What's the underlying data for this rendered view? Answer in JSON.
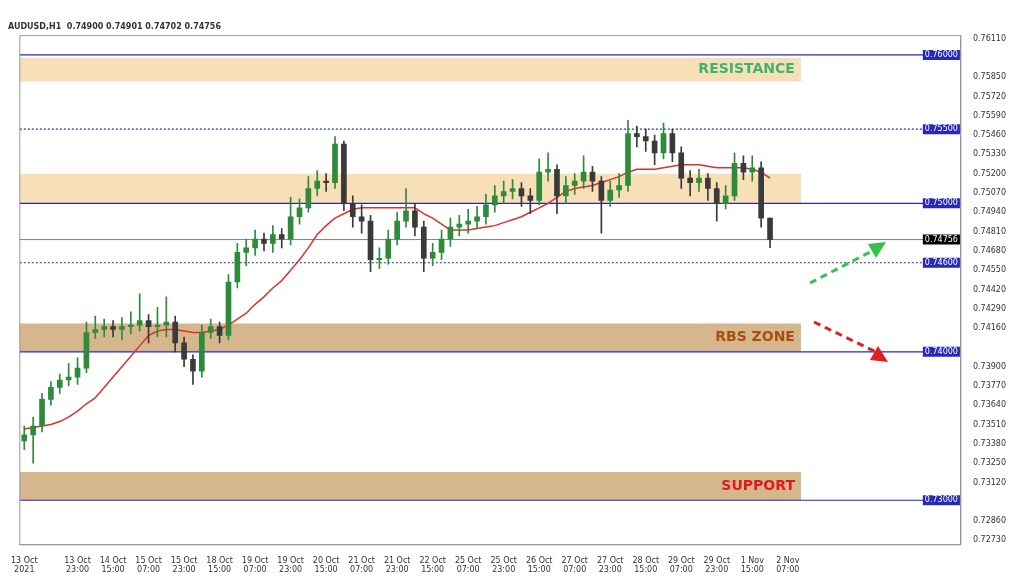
{
  "chart_data": {
    "type": "candlestick",
    "title": "AUDUSD,H1  0.74900 0.74901 0.74702 0.74756",
    "categories": [
      "13 Oct 2021",
      null,
      null,
      null,
      null,
      null,
      "13 Oct 23:00",
      null,
      null,
      null,
      "14 Oct 15:00",
      null,
      null,
      null,
      "15 Oct 07:00",
      null,
      null,
      null,
      "15 Oct 23:00",
      null,
      null,
      null,
      "18 Oct 15:00",
      null,
      null,
      null,
      "19 Oct 07:00",
      null,
      null,
      null,
      "19 Oct 23:00",
      null,
      null,
      null,
      "20 Oct 15:00",
      null,
      null,
      null,
      "21 Oct 07:00",
      null,
      null,
      null,
      "21 Oct 23:00",
      null,
      null,
      null,
      "22 Oct 15:00",
      null,
      null,
      null,
      "25 Oct 07:00",
      null,
      null,
      null,
      "25 Oct 23:00",
      null,
      null,
      null,
      "26 Oct 15:00",
      null,
      null,
      null,
      "27 Oct 07:00",
      null,
      null,
      null,
      "27 Oct 23:00",
      null,
      null,
      null,
      "28 Oct 15:00",
      null,
      null,
      null,
      "29 Oct 07:00",
      null,
      null,
      null,
      "29 Oct 23:00",
      null,
      null,
      null,
      "1 Nov 15:00",
      null,
      null,
      null,
      "2 Nov 07:00",
      null,
      null,
      null,
      null,
      null,
      null,
      null,
      null,
      null,
      null,
      null,
      null,
      null,
      null,
      null,
      null,
      null,
      null,
      null
    ],
    "ohlc": [
      [
        0.734,
        0.735,
        0.7334,
        0.7344
      ],
      [
        0.7344,
        0.7356,
        0.7325,
        0.735
      ],
      [
        0.735,
        0.7372,
        0.7346,
        0.7368
      ],
      [
        0.7368,
        0.738,
        0.7364,
        0.7376
      ],
      [
        0.7376,
        0.7385,
        0.7372,
        0.7381
      ],
      [
        0.7381,
        0.7392,
        0.7377,
        0.7383
      ],
      [
        0.7383,
        0.7396,
        0.7378,
        0.7389
      ],
      [
        0.7389,
        0.742,
        0.7386,
        0.7413
      ],
      [
        0.7413,
        0.7424,
        0.7409,
        0.7415
      ],
      [
        0.7415,
        0.7422,
        0.741,
        0.7417
      ],
      [
        0.7417,
        0.7421,
        0.741,
        0.7415
      ],
      [
        0.7415,
        0.7423,
        0.7408,
        0.7417
      ],
      [
        0.7417,
        0.7427,
        0.7412,
        0.7418
      ],
      [
        0.7418,
        0.7439,
        0.7414,
        0.7421
      ],
      [
        0.7421,
        0.7425,
        0.7406,
        0.7417
      ],
      [
        0.7417,
        0.743,
        0.741,
        0.7418
      ],
      [
        0.7418,
        0.7437,
        0.741,
        0.742
      ],
      [
        0.742,
        0.7424,
        0.74,
        0.7406
      ],
      [
        0.7406,
        0.741,
        0.739,
        0.7395
      ],
      [
        0.7395,
        0.7398,
        0.7378,
        0.7387
      ],
      [
        0.7387,
        0.7418,
        0.7383,
        0.7413
      ],
      [
        0.7413,
        0.7422,
        0.7409,
        0.7417
      ],
      [
        0.7417,
        0.742,
        0.7406,
        0.7411
      ],
      [
        0.7411,
        0.7452,
        0.7408,
        0.7447
      ],
      [
        0.7447,
        0.7473,
        0.7443,
        0.7467
      ],
      [
        0.7467,
        0.7476,
        0.7458,
        0.747
      ],
      [
        0.747,
        0.7482,
        0.7465,
        0.7476
      ],
      [
        0.7476,
        0.748,
        0.7468,
        0.7473
      ],
      [
        0.7473,
        0.7485,
        0.7467,
        0.7479
      ],
      [
        0.7479,
        0.7483,
        0.747,
        0.7476
      ],
      [
        0.7476,
        0.7504,
        0.7472,
        0.7491
      ],
      [
        0.7491,
        0.7503,
        0.7486,
        0.7497
      ],
      [
        0.7497,
        0.7518,
        0.7494,
        0.751
      ],
      [
        0.751,
        0.7522,
        0.7505,
        0.7515
      ],
      [
        0.7515,
        0.752,
        0.7508,
        0.7514
      ],
      [
        0.7514,
        0.7545,
        0.751,
        0.754
      ],
      [
        0.754,
        0.7542,
        0.7495,
        0.75
      ],
      [
        0.75,
        0.7505,
        0.7484,
        0.7491
      ],
      [
        0.7491,
        0.7499,
        0.748,
        0.7488
      ],
      [
        0.7488,
        0.7492,
        0.7454,
        0.7462
      ],
      [
        0.7462,
        0.747,
        0.7456,
        0.7463
      ],
      [
        0.7463,
        0.7482,
        0.7459,
        0.7476
      ],
      [
        0.7476,
        0.7494,
        0.7472,
        0.7488
      ],
      [
        0.7488,
        0.751,
        0.7484,
        0.7495
      ],
      [
        0.7495,
        0.75,
        0.7478,
        0.7484
      ],
      [
        0.7484,
        0.7488,
        0.7454,
        0.7463
      ],
      [
        0.7463,
        0.7473,
        0.7458,
        0.7467
      ],
      [
        0.7467,
        0.7482,
        0.7462,
        0.7476
      ],
      [
        0.7476,
        0.749,
        0.7471,
        0.7484
      ],
      [
        0.7484,
        0.7492,
        0.7478,
        0.7486
      ],
      [
        0.7486,
        0.7496,
        0.748,
        0.7488
      ],
      [
        0.7488,
        0.7498,
        0.7483,
        0.7491
      ],
      [
        0.7491,
        0.7506,
        0.7486,
        0.7499
      ],
      [
        0.7499,
        0.7512,
        0.7494,
        0.7505
      ],
      [
        0.7505,
        0.7515,
        0.75,
        0.7508
      ],
      [
        0.7508,
        0.7516,
        0.7503,
        0.751
      ],
      [
        0.751,
        0.7514,
        0.7498,
        0.7505
      ],
      [
        0.7505,
        0.751,
        0.7493,
        0.7502
      ],
      [
        0.7502,
        0.753,
        0.7499,
        0.7521
      ],
      [
        0.7521,
        0.7534,
        0.7515,
        0.7523
      ],
      [
        0.7523,
        0.7526,
        0.7493,
        0.7505
      ],
      [
        0.7505,
        0.7518,
        0.75,
        0.7512
      ],
      [
        0.7512,
        0.752,
        0.7506,
        0.7515
      ],
      [
        0.7515,
        0.7532,
        0.751,
        0.7521
      ],
      [
        0.7521,
        0.7525,
        0.7508,
        0.7515
      ],
      [
        0.7515,
        0.7518,
        0.748,
        0.7502
      ],
      [
        0.7502,
        0.7515,
        0.7498,
        0.7509
      ],
      [
        0.7509,
        0.752,
        0.7504,
        0.7512
      ],
      [
        0.7512,
        0.7556,
        0.7508,
        0.7547
      ],
      [
        0.7547,
        0.7552,
        0.7538,
        0.7545
      ],
      [
        0.7545,
        0.755,
        0.7535,
        0.7542
      ],
      [
        0.7542,
        0.7546,
        0.7526,
        0.7534
      ],
      [
        0.7534,
        0.7554,
        0.753,
        0.7547
      ],
      [
        0.7547,
        0.755,
        0.7528,
        0.7534
      ],
      [
        0.7534,
        0.7538,
        0.751,
        0.7517
      ],
      [
        0.7517,
        0.7522,
        0.7505,
        0.7514
      ],
      [
        0.7514,
        0.7523,
        0.7508,
        0.7517
      ],
      [
        0.7517,
        0.752,
        0.7502,
        0.751
      ],
      [
        0.751,
        0.7514,
        0.7488,
        0.75
      ],
      [
        0.75,
        0.7512,
        0.7496,
        0.7505
      ],
      [
        0.7505,
        0.7534,
        0.7502,
        0.7527
      ],
      [
        0.7527,
        0.7532,
        0.7516,
        0.7521
      ],
      [
        0.7521,
        0.7532,
        0.7515,
        0.7524
      ],
      [
        0.7524,
        0.7528,
        0.7484,
        0.749
      ],
      [
        0.749,
        0.74901,
        0.74702,
        0.74756
      ],
      null,
      null,
      null,
      null,
      null,
      null,
      null,
      null,
      null,
      null,
      null,
      null,
      null,
      null,
      null,
      null,
      null,
      null,
      null,
      null,
      null
    ],
    "series": [
      {
        "type": "line",
        "color": "#e0302c",
        "values": [
          0.7348,
          0.7349,
          0.735,
          0.7351,
          0.7353,
          0.7356,
          0.736,
          0.7365,
          0.7369,
          0.7376,
          0.7383,
          0.739,
          0.7397,
          0.7404,
          0.7411,
          0.7414,
          0.7415,
          0.7415,
          0.7414,
          0.7413,
          0.7413,
          0.7414,
          0.7415,
          0.7418,
          0.7422,
          0.7426,
          0.7432,
          0.7437,
          0.7443,
          0.7448,
          0.7455,
          0.7462,
          0.747,
          0.7479,
          0.7485,
          0.749,
          0.7493,
          0.7496,
          0.7497,
          0.7497,
          0.7497,
          0.7497,
          0.7497,
          0.7497,
          0.7497,
          0.7493,
          0.749,
          0.7486,
          0.7482,
          0.7482,
          0.7482,
          0.7483,
          0.7484,
          0.7485,
          0.7487,
          0.7489,
          0.7491,
          0.7494,
          0.7497,
          0.75,
          0.7504,
          0.7508,
          0.751,
          0.7511,
          0.7512,
          0.7514,
          0.7516,
          0.7518,
          0.7521,
          0.7523,
          0.7523,
          0.7523,
          0.7524,
          0.7525,
          0.7526,
          0.7526,
          0.7526,
          0.7525,
          0.7524,
          0.7524,
          0.7524,
          0.7524,
          0.7523,
          0.7521,
          0.7517,
          null,
          null,
          null,
          null,
          null,
          null,
          null,
          null,
          null,
          null,
          null,
          null,
          null,
          null,
          null,
          null,
          null,
          null,
          null,
          null,
          null
        ]
      }
    ],
    "ylim": [
      0.727,
      0.7613
    ],
    "yticks": [
      {
        "value": 0.7611,
        "label": "0.76110"
      },
      {
        "value": 0.7585,
        "label": "0.75850"
      },
      {
        "value": 0.7572,
        "label": "0.75720"
      },
      {
        "value": 0.7559,
        "label": "0.75590"
      },
      {
        "value": 0.7546,
        "label": "0.75460"
      },
      {
        "value": 0.7533,
        "label": "0.75330"
      },
      {
        "value": 0.752,
        "label": "0.75200"
      },
      {
        "value": 0.7507,
        "label": "0.75070"
      },
      {
        "value": 0.7494,
        "label": "0.74940"
      },
      {
        "value": 0.7481,
        "label": "0.74810"
      },
      {
        "value": 0.7468,
        "label": "0.74680"
      },
      {
        "value": 0.7455,
        "label": "0.74550"
      },
      {
        "value": 0.7442,
        "label": "0.74420"
      },
      {
        "value": 0.7429,
        "label": "0.74290"
      },
      {
        "value": 0.7416,
        "label": "0.74160"
      },
      {
        "value": 0.739,
        "label": "0.73900"
      },
      {
        "value": 0.7377,
        "label": "0.73770"
      },
      {
        "value": 0.7364,
        "label": "0.73640"
      },
      {
        "value": 0.7351,
        "label": "0.73510"
      },
      {
        "value": 0.7338,
        "label": "0.73380"
      },
      {
        "value": 0.7325,
        "label": "0.73250"
      },
      {
        "value": 0.7312,
        "label": "0.73120"
      },
      {
        "value": 0.7286,
        "label": "0.72860"
      },
      {
        "value": 0.7273,
        "label": "0.72730"
      }
    ],
    "bands": [
      {
        "axis": "y",
        "from": 0.7582,
        "to": 0.7598,
        "label": "RESISTANCE",
        "color": "#f7dfb8"
      },
      {
        "axis": "y",
        "from": 0.75,
        "to": 0.752,
        "label": null,
        "color": "#f7dfb8"
      },
      {
        "axis": "y",
        "from": 0.74,
        "to": 0.7419,
        "label": "RBS ZONE",
        "color": "#d6b68c"
      },
      {
        "axis": "y",
        "from": 0.73,
        "to": 0.7319,
        "label": "SUPPORT",
        "color": "#d6b68c"
      }
    ],
    "ref_lines": [
      {
        "axis": "y",
        "value": 0.76,
        "label": "0.76000",
        "color": "#2828b8",
        "line_style": "solid"
      },
      {
        "axis": "y",
        "value": 0.755,
        "label": "0.75500",
        "color": "#2828b8",
        "line_style": "dotted"
      },
      {
        "axis": "y",
        "value": 0.75,
        "label": "0.75000",
        "color": "#2828b8",
        "line_style": "solid"
      },
      {
        "axis": "y",
        "value": 0.74756,
        "label": "0.74756",
        "color": "#000000",
        "line_style": "solid"
      },
      {
        "axis": "y",
        "value": 0.746,
        "label": "0.74600",
        "color": "#2828b8",
        "line_style": "dotted"
      },
      {
        "axis": "y",
        "value": 0.74,
        "label": "0.74000",
        "color": "#2828b8",
        "line_style": "solid"
      },
      {
        "axis": "y",
        "value": 0.73,
        "label": "0.73000",
        "color": "#2828b8",
        "line_style": "solid"
      }
    ],
    "grid": false,
    "legend": false
  }
}
